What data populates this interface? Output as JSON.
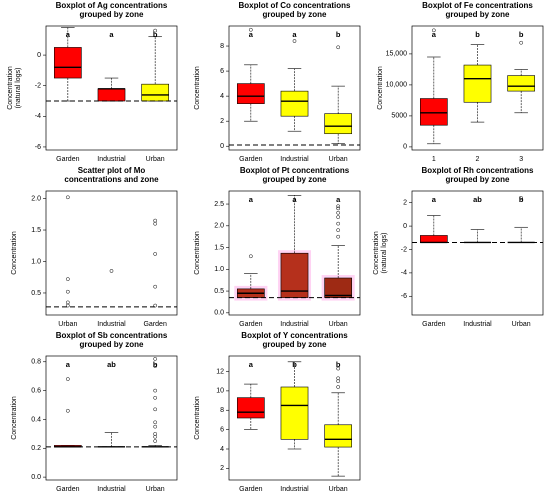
{
  "chart_data": [
    {
      "type": "box",
      "title": [
        "Boxplot of Ag concentrations",
        "grouped by zone"
      ],
      "ylabel": [
        "Concentration",
        "(natural logs)"
      ],
      "categories": [
        "Garden",
        "Industrial",
        "Urban"
      ],
      "ylim": [
        -6.2,
        1.9
      ],
      "yticks": [
        -6,
        -4,
        -2,
        0
      ],
      "hline": -3,
      "letters": [
        "a",
        "a",
        "b"
      ],
      "boxes": [
        {
          "whislo": -3,
          "q1": -1.5,
          "med": -0.8,
          "q3": 0.5,
          "whishi": 1.8,
          "outliers": [],
          "color": "#ff0000"
        },
        {
          "whislo": -3,
          "q1": -3,
          "med": -2.2,
          "q3": -2.2,
          "whishi": -1.5,
          "outliers": [],
          "color": "#ff0000"
        },
        {
          "whislo": -3,
          "q1": -3,
          "med": -2.6,
          "q3": -1.9,
          "whishi": 1.2,
          "outliers": [
            1.6
          ],
          "color": "#ffff00"
        }
      ]
    },
    {
      "type": "box",
      "title": [
        "Boxplot of Co concentrations",
        "grouped by zone"
      ],
      "ylabel": [
        "Concentration"
      ],
      "categories": [
        "Garden",
        "Industrial",
        "Urban"
      ],
      "ylim": [
        -0.3,
        9.6
      ],
      "yticks": [
        0,
        2,
        4,
        6,
        8
      ],
      "hline": 0.1,
      "letters": [
        "a",
        "a",
        "b"
      ],
      "boxes": [
        {
          "whislo": 2,
          "q1": 3.4,
          "med": 4,
          "q3": 5,
          "whishi": 6.5,
          "outliers": [
            9.3
          ],
          "color": "#ff0000"
        },
        {
          "whislo": 1.2,
          "q1": 2.4,
          "med": 3.6,
          "q3": 4.4,
          "whishi": 6.2,
          "outliers": [
            8.4
          ],
          "color": "#ffff00"
        },
        {
          "whislo": 0.2,
          "q1": 1,
          "med": 1.6,
          "q3": 2.6,
          "whishi": 4.8,
          "outliers": [
            7.9
          ],
          "color": "#ffff00"
        }
      ]
    },
    {
      "type": "box",
      "title": [
        "Boxplot of Fe concentrations",
        "grouped by zone"
      ],
      "ylabel": [
        "Concentration"
      ],
      "categories": [
        "1",
        "2",
        "3"
      ],
      "ylim": [
        -500,
        19500
      ],
      "yticks": [
        0,
        5000,
        {
          "value": 10000,
          "label": "10,000"
        },
        {
          "value": 15000,
          "label": "15,000"
        }
      ],
      "letters": [
        "a",
        "b",
        "b"
      ],
      "boxes": [
        {
          "whislo": 500,
          "q1": 3500,
          "med": 5500,
          "q3": 7800,
          "whishi": 14500,
          "outliers": [
            18800
          ],
          "color": "#ff0000"
        },
        {
          "whislo": 4000,
          "q1": 7200,
          "med": 11000,
          "q3": 13200,
          "whishi": 16500,
          "outliers": [],
          "color": "#ffff00"
        },
        {
          "whislo": 5500,
          "q1": 9000,
          "med": 9800,
          "q3": 11500,
          "whishi": 12500,
          "outliers": [
            16800
          ],
          "color": "#ffff00"
        }
      ]
    },
    {
      "type": "scatter",
      "title": [
        "Scatter plot of Mo",
        "concentrations and zone"
      ],
      "ylabel": [
        "Concentration"
      ],
      "categories": [
        "Urban",
        "Industrial",
        "Garden"
      ],
      "ylim": [
        0.15,
        2.12
      ],
      "yticks": [
        0.5,
        {
          "value": 1,
          "label": "1.0"
        },
        1.5,
        {
          "value": 2,
          "label": "2.0"
        }
      ],
      "hline": 0.28,
      "values": [
        [
          2.02,
          0.72,
          0.52,
          0.35,
          0.3
        ],
        [
          0.85
        ],
        [
          1.65,
          1.6,
          1.12,
          0.6,
          0.3
        ]
      ]
    },
    {
      "type": "box",
      "title": [
        "Boxplot of Pt concentrations",
        "grouped by zone"
      ],
      "ylabel": [
        "Concentration"
      ],
      "categories": [
        "Garden",
        "Industrial",
        "Urban"
      ],
      "ylim": [
        -0.05,
        2.8
      ],
      "yticks": [
        {
          "value": 0,
          "label": "0.0"
        },
        0.5,
        {
          "value": 1,
          "label": "1.0"
        },
        1.5,
        {
          "value": 2,
          "label": "2.0"
        },
        2.5
      ],
      "hline": 0.35,
      "letters": [
        "a",
        "a",
        "a"
      ],
      "boxes": [
        {
          "whislo": 0.35,
          "q1": 0.35,
          "med": 0.45,
          "q3": 0.55,
          "whishi": 0.9,
          "outliers": [
            1.3
          ],
          "color": "#b5301c"
        },
        {
          "whislo": 0.35,
          "q1": 0.35,
          "med": 0.5,
          "q3": 1.37,
          "whishi": 2.7,
          "outliers": [],
          "color": "#b5301c"
        },
        {
          "whislo": 0.35,
          "q1": 0.35,
          "med": 0.4,
          "q3": 0.8,
          "whishi": 1.55,
          "outliers": [
            2.45,
            2.4,
            2.3,
            2.2,
            2.05,
            1.9,
            1.75
          ],
          "color": "#9e2a14"
        }
      ]
    },
    {
      "type": "box",
      "title": [
        "Boxplot of Rh concentrations",
        "grouped by zone"
      ],
      "ylabel": [
        "Concentration",
        "(natural logs)"
      ],
      "categories": [
        "Garden",
        "Industrial",
        "Urban"
      ],
      "ylim": [
        -7.6,
        3
      ],
      "yticks": [
        -6,
        -4,
        -2,
        0,
        2
      ],
      "hline": -1.4,
      "letters": [
        "a",
        "ab",
        "b"
      ],
      "boxes": [
        {
          "whislo": -1.4,
          "q1": -1.4,
          "med": -1.4,
          "q3": -0.8,
          "whishi": 0.9,
          "outliers": [],
          "color": "#ff0000"
        },
        {
          "whislo": -1.4,
          "q1": -1.4,
          "med": -1.4,
          "q3": -1.4,
          "whishi": -0.3,
          "outliers": [],
          "color": "#ff0000"
        },
        {
          "whislo": -1.4,
          "q1": -1.4,
          "med": -1.4,
          "q3": -1.4,
          "whishi": -0.1,
          "outliers": [
            2.4
          ],
          "color": "#ff0000"
        }
      ]
    },
    {
      "type": "box",
      "title": [
        "Boxplot of Sb concentrations",
        "grouped by zone"
      ],
      "ylabel": [
        "Concentration"
      ],
      "categories": [
        "Garden",
        "Industrial",
        "Urban"
      ],
      "ylim": [
        -0.02,
        0.84
      ],
      "yticks": [
        {
          "value": 0,
          "label": "0.0"
        },
        0.2,
        0.4,
        0.6,
        0.8
      ],
      "hline": 0.21,
      "letters": [
        "a",
        "ab",
        "b"
      ],
      "boxes": [
        {
          "whislo": 0.21,
          "q1": 0.21,
          "med": 0.21,
          "q3": 0.22,
          "whishi": 0.22,
          "outliers": [
            0.46,
            0.68
          ],
          "color": "#ff0000"
        },
        {
          "whislo": 0.21,
          "q1": 0.21,
          "med": 0.21,
          "q3": 0.21,
          "whishi": 0.31,
          "outliers": [],
          "color": "#ff0000"
        },
        {
          "whislo": 0.21,
          "q1": 0.21,
          "med": 0.21,
          "q3": 0.21,
          "whishi": 0.22,
          "outliers": [
            0.82,
            0.77,
            0.6,
            0.55,
            0.47,
            0.38,
            0.35,
            0.3,
            0.28,
            0.25
          ],
          "color": "#ff0000"
        }
      ]
    },
    {
      "type": "box",
      "title": [
        "Boxplot of Y concentrations",
        "grouped by zone"
      ],
      "ylabel": [
        "Concentration"
      ],
      "categories": [
        "Garden",
        "Industrial",
        "Urban"
      ],
      "ylim": [
        0.8,
        13.6
      ],
      "yticks": [
        2,
        4,
        6,
        8,
        10,
        12
      ],
      "letters": [
        "a",
        "b",
        "b"
      ],
      "boxes": [
        {
          "whislo": 6,
          "q1": 7.2,
          "med": 7.8,
          "q3": 9.3,
          "whishi": 10.7,
          "outliers": [],
          "color": "#ff0000"
        },
        {
          "whislo": 4,
          "q1": 5,
          "med": 8.5,
          "q3": 10.4,
          "whishi": 13,
          "outliers": [],
          "color": "#ffff00"
        },
        {
          "whislo": 1.2,
          "q1": 4.2,
          "med": 5,
          "q3": 6.5,
          "whishi": 9.8,
          "outliers": [
            12.3,
            11.3,
            11,
            10.4
          ],
          "color": "#ffff00"
        }
      ]
    }
  ]
}
